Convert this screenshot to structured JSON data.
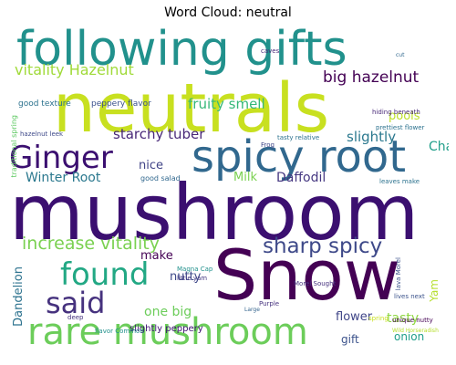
{
  "title": "Word Cloud: neutral",
  "words": [
    {
      "text": "following gifts",
      "color": "#21918c"
    },
    {
      "text": "neutrals",
      "color": "#c8e020"
    },
    {
      "text": "mushroom",
      "color": "#3b0f70"
    },
    {
      "text": "Snow",
      "color": "#440154"
    },
    {
      "text": "spicy root",
      "color": "#31688e"
    },
    {
      "text": "rare mushroom",
      "color": "#6ccd5a"
    },
    {
      "text": "Ginger",
      "color": "#3b0f70"
    },
    {
      "text": "found",
      "color": "#22a884"
    },
    {
      "text": "said",
      "color": "#46327e"
    },
    {
      "text": "sharp spicy",
      "color": "#3e4989"
    },
    {
      "text": "increase vitality",
      "color": "#7ad151"
    },
    {
      "text": "vitality Hazelnut",
      "color": "#a0da39"
    },
    {
      "text": "big hazelnut",
      "color": "#440154"
    },
    {
      "text": "fruity smell",
      "color": "#35b779"
    },
    {
      "text": "starchy tuber",
      "color": "#482878"
    },
    {
      "text": "slightly",
      "color": "#2a788e"
    },
    {
      "text": "pools",
      "color": "#bddf26"
    },
    {
      "text": "Winter Root",
      "color": "#2a788e"
    },
    {
      "text": "Daffodil",
      "color": "#453781"
    },
    {
      "text": "Milk",
      "color": "#7ad151"
    },
    {
      "text": "nice",
      "color": "#414487"
    },
    {
      "text": "Chanterelle",
      "color": "#1f9e89"
    },
    {
      "text": "Dandelion",
      "color": "#2c728e"
    },
    {
      "text": "make",
      "color": "#440154"
    },
    {
      "text": "nutty",
      "color": "#3e4989"
    },
    {
      "text": "one big",
      "color": "#6ccd5a"
    },
    {
      "text": "Yam",
      "color": "#b5de2b"
    },
    {
      "text": "tasty",
      "color": "#90d743"
    },
    {
      "text": "flower",
      "color": "#404688"
    },
    {
      "text": "gift",
      "color": "#3b528b"
    },
    {
      "text": "onion",
      "color": "#1f9e89"
    },
    {
      "text": "good texture",
      "color": "#2c728e"
    },
    {
      "text": "peppery flavor",
      "color": "#3b528b"
    },
    {
      "text": "hiding beneath",
      "color": "#482878"
    },
    {
      "text": "prettiest flower",
      "color": "#2c728e"
    },
    {
      "text": "slightly peppery",
      "color": "#3b0f70"
    },
    {
      "text": "Magna Cap",
      "color": "#21918c"
    },
    {
      "text": "little yam",
      "color": "#443983"
    },
    {
      "text": "flavor Common",
      "color": "#21918c"
    },
    {
      "text": "good salad",
      "color": "#31688e"
    },
    {
      "text": "traditional spring",
      "color": "#5ec962"
    },
    {
      "text": "hazelnut leek",
      "color": "#3e4989"
    },
    {
      "text": "tasty relative",
      "color": "#2c728e"
    },
    {
      "text": "leaves make",
      "color": "#2c728e"
    },
    {
      "text": "lava Morel",
      "color": "#3b528b"
    },
    {
      "text": "Morel Sought",
      "color": "#46327e"
    },
    {
      "text": "Purple",
      "color": "#46327e"
    },
    {
      "text": "lives next",
      "color": "#3b528b"
    },
    {
      "text": "unique nutty",
      "color": "#440154"
    },
    {
      "text": "Wild Horseradish",
      "color": "#b5de2b"
    },
    {
      "text": "spring",
      "color": "#c8e020"
    },
    {
      "text": "deep",
      "color": "#46327e"
    },
    {
      "text": "Large",
      "color": "#33638d"
    },
    {
      "text": "Frog",
      "color": "#404688"
    },
    {
      "text": "caves",
      "color": "#482878"
    },
    {
      "text": "cut",
      "color": "#31688e"
    }
  ]
}
